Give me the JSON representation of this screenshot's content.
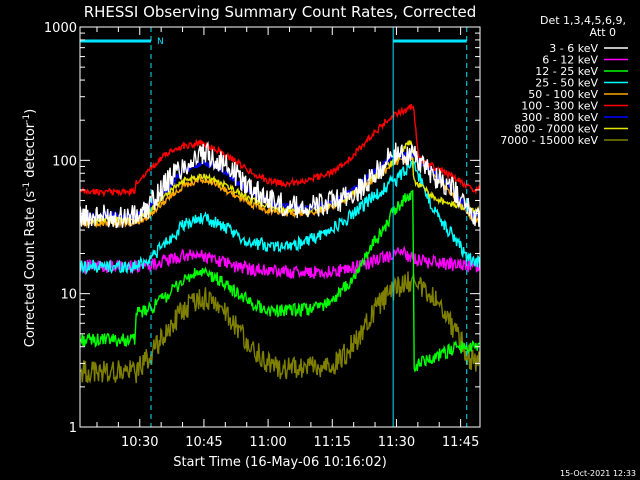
{
  "colors": {
    "background": "#000000",
    "axes": "#ffffff",
    "attenuator_marker": "#00e5ff"
  },
  "chart_data": {
    "type": "line",
    "title": "RHESSI Observing Summary Count Rates, Corrected",
    "xlabel": "Start Time (16-May-06 10:16:02)",
    "ylabel": "Corrected Count Rate (s",
    "ylabel_sup1": "-1",
    "ylabel_mid": " detector",
    "ylabel_sup2": "-1",
    "ylabel_end": ")",
    "yscale": "log",
    "x_units": "minutes since 10:16:02",
    "xlim": [
      0,
      93.5
    ],
    "ylim": [
      1,
      1000
    ],
    "x_tick_labels": [
      {
        "x": 13.97,
        "label": "10:30"
      },
      {
        "x": 28.97,
        "label": "10:45"
      },
      {
        "x": 43.97,
        "label": "11:00"
      },
      {
        "x": 58.97,
        "label": "11:15"
      },
      {
        "x": 73.97,
        "label": "11:30"
      },
      {
        "x": 88.97,
        "label": "11:45"
      }
    ],
    "y_tick_labels": [
      {
        "y": 1,
        "label": "1"
      },
      {
        "y": 10,
        "label": "10"
      },
      {
        "y": 100,
        "label": "100"
      },
      {
        "y": 1000,
        "label": "1000"
      }
    ],
    "legend_header": [
      "Det 1,3,4,5,6,9,",
      "Att 0"
    ],
    "attenuator_intervals": [
      {
        "start": 0,
        "end": 16.6,
        "label": "N"
      },
      {
        "start": 73.2,
        "end": 90.4,
        "label": ""
      }
    ],
    "series": [
      {
        "name": "3 - 6 keV",
        "color": "#ffffff",
        "x": [
          0,
          13,
          15,
          18,
          22,
          27,
          30,
          34,
          38,
          42,
          46,
          50,
          54,
          58,
          62,
          66,
          70,
          73,
          74,
          76,
          78,
          79,
          80,
          82,
          84,
          86,
          88,
          90,
          92
        ],
        "values": [
          38,
          38,
          40,
          55,
          80,
          105,
          110,
          92,
          70,
          56,
          48,
          45,
          45,
          47,
          52,
          62,
          85,
          110,
          112,
          112,
          110,
          100,
          90,
          80,
          72,
          65,
          58,
          47,
          38
        ]
      },
      {
        "name": "6 - 12 keV",
        "color": "#ff00ff",
        "x": [
          0,
          12.9,
          13,
          18,
          24,
          28,
          32,
          36,
          42,
          50,
          56,
          62,
          66,
          70,
          74,
          76,
          78,
          80,
          84,
          88,
          92
        ],
        "values": [
          16,
          16,
          16,
          17,
          19,
          19.5,
          18,
          16,
          15,
          14.5,
          14.5,
          15,
          16.5,
          18,
          20,
          20,
          18,
          17.5,
          17,
          16.5,
          16
        ]
      },
      {
        "name": "12 - 25 keV",
        "color": "#00ff00",
        "x": [
          0,
          12.9,
          13,
          16,
          20,
          24,
          28,
          32,
          36,
          40,
          44,
          48,
          52,
          56,
          60,
          64,
          68,
          72,
          74,
          76,
          77.9,
          78,
          80,
          84,
          88,
          91
        ],
        "values": [
          4.5,
          4.5,
          7,
          7.5,
          9.5,
          12.5,
          14.5,
          13,
          10.5,
          8.5,
          7.5,
          7.5,
          7.5,
          8,
          9.5,
          13,
          22,
          35,
          44,
          52,
          55,
          2.8,
          3.1,
          3.5,
          3.9,
          4
        ]
      },
      {
        "name": "25 - 50 keV",
        "color": "#00ffff",
        "x": [
          0,
          13,
          16,
          20,
          24,
          28,
          32,
          36,
          40,
          44,
          48,
          52,
          56,
          60,
          64,
          68,
          72,
          74,
          76,
          78,
          80,
          82,
          84,
          86,
          88,
          90,
          92
        ],
        "values": [
          16,
          16,
          18,
          24,
          32,
          37,
          34,
          28,
          24,
          23,
          23,
          24,
          27,
          32,
          40,
          52,
          65,
          72,
          85,
          95,
          65,
          48,
          36,
          30,
          25,
          20,
          17
        ]
      },
      {
        "name": "50 - 100 keV",
        "color": "#ffa500",
        "x": [
          0,
          13,
          16,
          20,
          24,
          28,
          32,
          36,
          40,
          44,
          48,
          52,
          56,
          60,
          64,
          68,
          72,
          74,
          76,
          78,
          80,
          82,
          84,
          86,
          88,
          90,
          92
        ],
        "values": [
          34,
          34,
          38,
          50,
          64,
          72,
          66,
          55,
          47,
          42,
          40,
          40,
          42,
          47,
          56,
          70,
          86,
          95,
          102,
          108,
          96,
          84,
          72,
          60,
          50,
          42,
          35
        ]
      },
      {
        "name": "100 - 300 keV",
        "color": "#ff0000",
        "x": [
          0,
          12.9,
          13,
          16,
          20,
          24,
          28,
          32,
          36,
          40,
          44,
          48,
          52,
          56,
          60,
          64,
          68,
          72,
          74,
          76,
          78,
          79,
          80,
          82,
          84,
          86,
          88,
          90,
          92
        ],
        "values": [
          58,
          58,
          67,
          85,
          110,
          128,
          135,
          120,
          100,
          82,
          70,
          67,
          70,
          76,
          85,
          110,
          150,
          205,
          225,
          240,
          255,
          110,
          100,
          92,
          86,
          79,
          72,
          66,
          61
        ]
      },
      {
        "name": "300 - 800 keV",
        "color": "#0000ff",
        "x": [
          0,
          13,
          16,
          20,
          24,
          28,
          32,
          36,
          40,
          44,
          48,
          52,
          56,
          60,
          64,
          68,
          72,
          74,
          76,
          78,
          80,
          82,
          84,
          86,
          88,
          90,
          92
        ],
        "values": [
          39,
          39,
          44,
          60,
          82,
          95,
          90,
          72,
          57,
          49,
          45,
          44,
          45,
          50,
          60,
          78,
          100,
          108,
          112,
          110,
          95,
          85,
          75,
          65,
          55,
          46,
          39
        ]
      },
      {
        "name": "800 - 7000 keV",
        "color": "#e5e500",
        "x": [
          0,
          13,
          16,
          20,
          24,
          28,
          32,
          36,
          40,
          44,
          48,
          52,
          56,
          60,
          64,
          68,
          72,
          74,
          76,
          77.5,
          78,
          80,
          82,
          84,
          86,
          88,
          90,
          92
        ],
        "values": [
          36,
          36,
          40,
          55,
          70,
          77,
          70,
          60,
          50,
          46,
          43,
          42,
          44,
          48,
          58,
          72,
          92,
          102,
          125,
          140,
          72,
          62,
          55,
          50,
          48,
          46,
          44,
          42
        ]
      },
      {
        "name": "7000 - 15000 keV",
        "color": "#808000",
        "x": [
          0,
          13,
          16,
          20,
          24,
          28,
          32,
          36,
          40,
          44,
          48,
          52,
          56,
          60,
          64,
          68,
          72,
          76,
          78,
          80,
          82,
          84,
          86,
          88,
          90,
          92
        ],
        "values": [
          2.6,
          2.6,
          3.3,
          5,
          7.5,
          9.5,
          8.5,
          6,
          4,
          3,
          2.7,
          2.7,
          2.8,
          3,
          4.2,
          7,
          10,
          12.5,
          12,
          11,
          9.5,
          8,
          6.5,
          5,
          3.8,
          3
        ]
      }
    ],
    "timestamp": "15-Oct-2021 12:33"
  }
}
